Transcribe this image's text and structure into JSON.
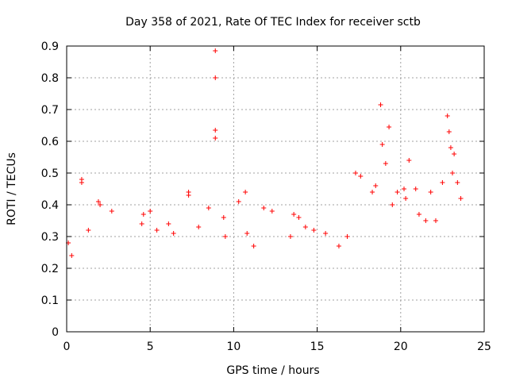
{
  "chart_data": {
    "type": "scatter",
    "title": "Day 358 of 2021, Rate Of TEC Index for receiver sctb",
    "xlabel": "GPS time / hours",
    "ylabel": "ROTI / TECUs",
    "xlim": [
      0,
      25
    ],
    "ylim": [
      0,
      0.9
    ],
    "xticks": [
      "0",
      "5",
      "10",
      "15",
      "20",
      "25"
    ],
    "yticks": [
      "0",
      "0.1",
      "0.2",
      "0.3",
      "0.4",
      "0.5",
      "0.6",
      "0.7",
      "0.8",
      "0.9"
    ],
    "grid": true,
    "marker": "plus",
    "color": "#ff0000",
    "series": [
      {
        "x": [
          0.1,
          0.3,
          0.9,
          0.9,
          1.3,
          1.9,
          2.0,
          2.7,
          4.5,
          4.6,
          5.0,
          5.4,
          6.1,
          6.4,
          7.3,
          7.3,
          7.9,
          8.5,
          8.9,
          8.9,
          8.9,
          8.9,
          9.4,
          9.5,
          10.3,
          10.7,
          10.8,
          11.2,
          11.8,
          12.3,
          13.4,
          13.6,
          13.9,
          14.3,
          14.8,
          15.5,
          16.3,
          16.8,
          17.3,
          17.6,
          18.3,
          18.5,
          18.8,
          18.9,
          19.1,
          19.3,
          19.5,
          19.8,
          20.2,
          20.3,
          20.5,
          20.9,
          21.1,
          21.5,
          21.8,
          22.1,
          22.5,
          22.8,
          22.9,
          23.0,
          23.1,
          23.2,
          23.4,
          23.6
        ],
        "y": [
          0.28,
          0.24,
          0.48,
          0.47,
          0.32,
          0.41,
          0.4,
          0.38,
          0.34,
          0.37,
          0.38,
          0.32,
          0.34,
          0.31,
          0.44,
          0.43,
          0.33,
          0.39,
          0.885,
          0.8,
          0.635,
          0.61,
          0.36,
          0.3,
          0.41,
          0.44,
          0.31,
          0.27,
          0.39,
          0.38,
          0.3,
          0.37,
          0.36,
          0.33,
          0.32,
          0.31,
          0.27,
          0.3,
          0.5,
          0.49,
          0.44,
          0.46,
          0.715,
          0.59,
          0.53,
          0.645,
          0.4,
          0.44,
          0.45,
          0.42,
          0.54,
          0.45,
          0.37,
          0.35,
          0.44,
          0.35,
          0.47,
          0.68,
          0.63,
          0.58,
          0.5,
          0.56,
          0.47,
          0.42
        ]
      }
    ]
  }
}
